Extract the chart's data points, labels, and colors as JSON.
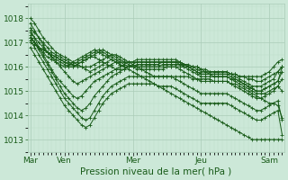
{
  "xlabel": "Pression niveau de la mer( hPa )",
  "bg_color": "#cce8d8",
  "grid_color_major": "#aaccb8",
  "grid_color_minor": "#bbddc8",
  "line_color": "#1a5c1a",
  "marker": "+",
  "markersize": 3,
  "linewidth": 0.7,
  "ylim": [
    1012.5,
    1018.6
  ],
  "yticks": [
    1013,
    1014,
    1015,
    1016,
    1017,
    1018
  ],
  "day_labels": [
    "Mar",
    "Ven",
    "Mer",
    "Jeu",
    "Sam"
  ],
  "day_positions": [
    0,
    8,
    24,
    40,
    56
  ],
  "n_points": 60,
  "xlabel_fontsize": 7.5,
  "tick_fontsize": 6.5,
  "series": [
    [
      1018.0,
      1017.8,
      1017.5,
      1017.2,
      1017.0,
      1016.8,
      1016.6,
      1016.5,
      1016.4,
      1016.3,
      1016.2,
      1016.1,
      1016.0,
      1015.9,
      1015.8,
      1015.9,
      1016.0,
      1016.1,
      1016.2,
      1016.3,
      1016.2,
      1016.1,
      1016.0,
      1015.9,
      1015.8,
      1015.7,
      1015.6,
      1015.5,
      1015.4,
      1015.3,
      1015.2,
      1015.1,
      1015.0,
      1014.9,
      1014.8,
      1014.7,
      1014.6,
      1014.5,
      1014.4,
      1014.3,
      1014.2,
      1014.1,
      1014.0,
      1013.9,
      1013.8,
      1013.7,
      1013.6,
      1013.5,
      1013.4,
      1013.3,
      1013.2,
      1013.1,
      1013.0,
      1013.0,
      1013.0,
      1013.0,
      1013.0,
      1013.0,
      1013.0,
      1013.0
    ],
    [
      1017.6,
      1017.4,
      1017.2,
      1017.0,
      1016.8,
      1016.6,
      1016.5,
      1016.4,
      1016.3,
      1016.2,
      1016.1,
      1016.0,
      1016.0,
      1016.0,
      1016.0,
      1016.1,
      1016.2,
      1016.3,
      1016.4,
      1016.5,
      1016.5,
      1016.4,
      1016.3,
      1016.2,
      1016.1,
      1016.0,
      1015.9,
      1015.8,
      1015.7,
      1015.6,
      1015.6,
      1015.6,
      1015.6,
      1015.6,
      1015.6,
      1015.6,
      1015.6,
      1015.6,
      1015.5,
      1015.5,
      1015.5,
      1015.5,
      1015.5,
      1015.4,
      1015.4,
      1015.4,
      1015.4,
      1015.3,
      1015.3,
      1015.2,
      1015.1,
      1015.0,
      1014.9,
      1014.8,
      1014.7,
      1014.6,
      1014.5,
      1014.5,
      1014.4,
      1013.9
    ],
    [
      1017.4,
      1017.2,
      1017.0,
      1016.8,
      1016.6,
      1016.4,
      1016.3,
      1016.2,
      1016.1,
      1016.0,
      1016.0,
      1016.1,
      1016.2,
      1016.3,
      1016.4,
      1016.5,
      1016.6,
      1016.7,
      1016.6,
      1016.5,
      1016.4,
      1016.3,
      1016.2,
      1016.1,
      1016.0,
      1015.9,
      1015.9,
      1015.9,
      1015.9,
      1015.9,
      1015.9,
      1015.9,
      1016.0,
      1016.0,
      1016.0,
      1016.0,
      1016.0,
      1016.0,
      1016.0,
      1016.0,
      1015.9,
      1015.8,
      1015.7,
      1015.6,
      1015.6,
      1015.6,
      1015.6,
      1015.5,
      1015.5,
      1015.4,
      1015.3,
      1015.2,
      1015.1,
      1015.0,
      1015.0,
      1015.1,
      1015.2,
      1015.3,
      1015.4,
      1016.0
    ],
    [
      1017.2,
      1017.0,
      1016.8,
      1016.7,
      1016.6,
      1016.5,
      1016.4,
      1016.3,
      1016.2,
      1016.1,
      1016.1,
      1016.2,
      1016.3,
      1016.4,
      1016.5,
      1016.6,
      1016.7,
      1016.6,
      1016.5,
      1016.4,
      1016.3,
      1016.2,
      1016.1,
      1016.0,
      1016.0,
      1016.0,
      1016.0,
      1016.0,
      1016.0,
      1016.0,
      1016.0,
      1016.1,
      1016.1,
      1016.1,
      1016.1,
      1016.1,
      1016.1,
      1016.1,
      1016.0,
      1016.0,
      1015.9,
      1015.9,
      1015.8,
      1015.8,
      1015.8,
      1015.8,
      1015.8,
      1015.7,
      1015.7,
      1015.6,
      1015.6,
      1015.5,
      1015.5,
      1015.4,
      1015.4,
      1015.5,
      1015.6,
      1015.7,
      1015.8,
      1016.0
    ],
    [
      1017.0,
      1016.9,
      1016.8,
      1016.7,
      1016.6,
      1016.5,
      1016.4,
      1016.3,
      1016.2,
      1016.1,
      1016.2,
      1016.3,
      1016.4,
      1016.5,
      1016.6,
      1016.7,
      1016.6,
      1016.5,
      1016.4,
      1016.3,
      1016.2,
      1016.1,
      1016.0,
      1016.0,
      1016.0,
      1016.1,
      1016.1,
      1016.1,
      1016.1,
      1016.1,
      1016.1,
      1016.2,
      1016.2,
      1016.2,
      1016.2,
      1016.2,
      1016.1,
      1016.0,
      1016.0,
      1015.9,
      1015.8,
      1015.8,
      1015.8,
      1015.8,
      1015.8,
      1015.8,
      1015.8,
      1015.7,
      1015.7,
      1015.6,
      1015.6,
      1015.6,
      1015.6,
      1015.6,
      1015.6,
      1015.7,
      1015.8,
      1016.0,
      1016.2,
      1016.3
    ],
    [
      1017.2,
      1017.0,
      1016.8,
      1016.6,
      1016.4,
      1016.3,
      1016.2,
      1016.1,
      1016.0,
      1016.0,
      1016.0,
      1016.1,
      1016.2,
      1016.3,
      1016.4,
      1016.4,
      1016.3,
      1016.2,
      1016.1,
      1016.0,
      1015.9,
      1015.9,
      1015.9,
      1016.0,
      1016.1,
      1016.2,
      1016.2,
      1016.2,
      1016.2,
      1016.2,
      1016.2,
      1016.2,
      1016.2,
      1016.2,
      1016.2,
      1016.2,
      1016.1,
      1016.0,
      1015.9,
      1015.8,
      1015.7,
      1015.7,
      1015.7,
      1015.7,
      1015.7,
      1015.7,
      1015.7,
      1015.7,
      1015.6,
      1015.5,
      1015.4,
      1015.3,
      1015.2,
      1015.2,
      1015.2,
      1015.3,
      1015.4,
      1015.5,
      1015.8,
      1016.0
    ],
    [
      1017.8,
      1017.5,
      1017.2,
      1016.9,
      1016.6,
      1016.4,
      1016.2,
      1016.0,
      1015.8,
      1015.6,
      1015.4,
      1015.3,
      1015.4,
      1015.5,
      1015.6,
      1015.7,
      1015.8,
      1015.9,
      1016.0,
      1016.1,
      1016.2,
      1016.2,
      1016.2,
      1016.2,
      1016.2,
      1016.3,
      1016.3,
      1016.3,
      1016.3,
      1016.3,
      1016.3,
      1016.3,
      1016.3,
      1016.3,
      1016.3,
      1016.2,
      1016.1,
      1016.0,
      1015.9,
      1015.8,
      1015.7,
      1015.7,
      1015.7,
      1015.7,
      1015.7,
      1015.7,
      1015.7,
      1015.6,
      1015.5,
      1015.4,
      1015.3,
      1015.2,
      1015.1,
      1015.0,
      1015.0,
      1015.1,
      1015.2,
      1015.3,
      1015.4,
      1015.8
    ],
    [
      1017.5,
      1017.2,
      1016.8,
      1016.5,
      1016.2,
      1015.9,
      1015.6,
      1015.4,
      1015.2,
      1015.0,
      1014.8,
      1014.7,
      1014.8,
      1015.0,
      1015.2,
      1015.4,
      1015.5,
      1015.6,
      1015.7,
      1015.8,
      1015.9,
      1016.0,
      1016.1,
      1016.2,
      1016.2,
      1016.2,
      1016.2,
      1016.2,
      1016.2,
      1016.2,
      1016.2,
      1016.2,
      1016.2,
      1016.2,
      1016.2,
      1016.1,
      1016.0,
      1015.9,
      1015.8,
      1015.7,
      1015.6,
      1015.6,
      1015.6,
      1015.6,
      1015.6,
      1015.6,
      1015.6,
      1015.5,
      1015.4,
      1015.3,
      1015.2,
      1015.1,
      1015.0,
      1014.9,
      1014.9,
      1014.9,
      1015.0,
      1015.1,
      1015.2,
      1015.5
    ],
    [
      1017.3,
      1017.0,
      1016.7,
      1016.4,
      1016.1,
      1015.8,
      1015.5,
      1015.2,
      1014.9,
      1014.7,
      1014.5,
      1014.3,
      1014.2,
      1014.3,
      1014.5,
      1014.8,
      1015.0,
      1015.2,
      1015.4,
      1015.6,
      1015.7,
      1015.8,
      1015.9,
      1016.0,
      1016.0,
      1016.0,
      1016.0,
      1016.0,
      1016.0,
      1016.0,
      1016.0,
      1016.0,
      1016.0,
      1016.0,
      1016.0,
      1015.9,
      1015.8,
      1015.7,
      1015.6,
      1015.5,
      1015.4,
      1015.4,
      1015.4,
      1015.4,
      1015.4,
      1015.4,
      1015.4,
      1015.3,
      1015.2,
      1015.1,
      1015.0,
      1014.9,
      1014.8,
      1014.7,
      1014.7,
      1014.8,
      1014.9,
      1015.0,
      1015.2,
      1015.0
    ],
    [
      1017.1,
      1016.8,
      1016.5,
      1016.2,
      1015.9,
      1015.6,
      1015.3,
      1015.0,
      1014.7,
      1014.5,
      1014.3,
      1014.1,
      1013.9,
      1013.8,
      1013.9,
      1014.2,
      1014.5,
      1014.8,
      1015.0,
      1015.2,
      1015.3,
      1015.4,
      1015.5,
      1015.6,
      1015.6,
      1015.6,
      1015.6,
      1015.6,
      1015.6,
      1015.6,
      1015.6,
      1015.6,
      1015.6,
      1015.6,
      1015.5,
      1015.4,
      1015.3,
      1015.2,
      1015.1,
      1015.0,
      1014.9,
      1014.9,
      1014.9,
      1014.9,
      1014.9,
      1014.9,
      1014.9,
      1014.8,
      1014.7,
      1014.6,
      1014.5,
      1014.4,
      1014.3,
      1014.2,
      1014.2,
      1014.3,
      1014.4,
      1014.5,
      1014.6,
      1013.8
    ],
    [
      1016.8,
      1016.5,
      1016.2,
      1015.9,
      1015.6,
      1015.3,
      1015.0,
      1014.7,
      1014.4,
      1014.2,
      1014.0,
      1013.8,
      1013.6,
      1013.5,
      1013.6,
      1013.9,
      1014.2,
      1014.5,
      1014.7,
      1014.9,
      1015.0,
      1015.1,
      1015.2,
      1015.3,
      1015.3,
      1015.3,
      1015.3,
      1015.3,
      1015.3,
      1015.3,
      1015.2,
      1015.2,
      1015.2,
      1015.2,
      1015.1,
      1015.0,
      1014.9,
      1014.8,
      1014.7,
      1014.6,
      1014.5,
      1014.5,
      1014.5,
      1014.5,
      1014.5,
      1014.5,
      1014.5,
      1014.4,
      1014.3,
      1014.2,
      1014.1,
      1014.0,
      1013.9,
      1013.8,
      1013.8,
      1013.9,
      1014.0,
      1014.1,
      1014.2,
      1013.2
    ]
  ]
}
